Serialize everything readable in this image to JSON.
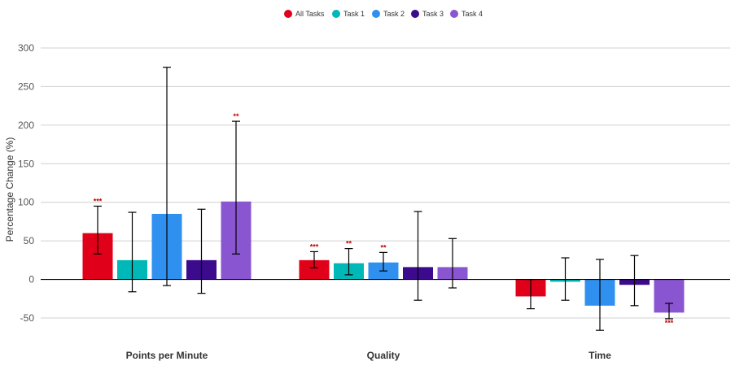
{
  "chart_data": {
    "type": "bar",
    "title": "",
    "xlabel": "",
    "ylabel": "Percentage Change (%)",
    "ylim": [
      -50,
      300
    ],
    "yticks": [
      -50,
      0,
      50,
      100,
      150,
      200,
      250,
      300
    ],
    "grid": true,
    "legend_position": "top-center",
    "categories": [
      "Points per Minute",
      "Quality",
      "Time"
    ],
    "series": [
      {
        "name": "All Tasks",
        "color": "#e0001a",
        "values": [
          60,
          25,
          -22
        ],
        "error_low": [
          33,
          15,
          -38
        ],
        "error_high": [
          95,
          36,
          0
        ],
        "significance": [
          "***",
          "***",
          ""
        ]
      },
      {
        "name": "Task 1",
        "color": "#00b8b8",
        "values": [
          25,
          21,
          -3
        ],
        "error_low": [
          -16,
          6,
          -27
        ],
        "error_high": [
          87,
          40,
          28
        ],
        "significance": [
          "",
          "**",
          ""
        ]
      },
      {
        "name": "Task 2",
        "color": "#3090f0",
        "values": [
          85,
          22,
          -34
        ],
        "error_low": [
          -8,
          11,
          -66
        ],
        "error_high": [
          275,
          35,
          26
        ],
        "significance": [
          "",
          "**",
          ""
        ]
      },
      {
        "name": "Task 3",
        "color": "#3c0a8c",
        "values": [
          25,
          16,
          -7
        ],
        "error_low": [
          -18,
          -27,
          -34
        ],
        "error_high": [
          91,
          88,
          31
        ],
        "significance": [
          "",
          "",
          ""
        ]
      },
      {
        "name": "Task 4",
        "color": "#8a55d0",
        "values": [
          101,
          16,
          -43
        ],
        "error_low": [
          33,
          -11,
          -51
        ],
        "error_high": [
          205,
          53,
          -31
        ],
        "significance": [
          "**",
          "",
          "***"
        ]
      }
    ]
  }
}
